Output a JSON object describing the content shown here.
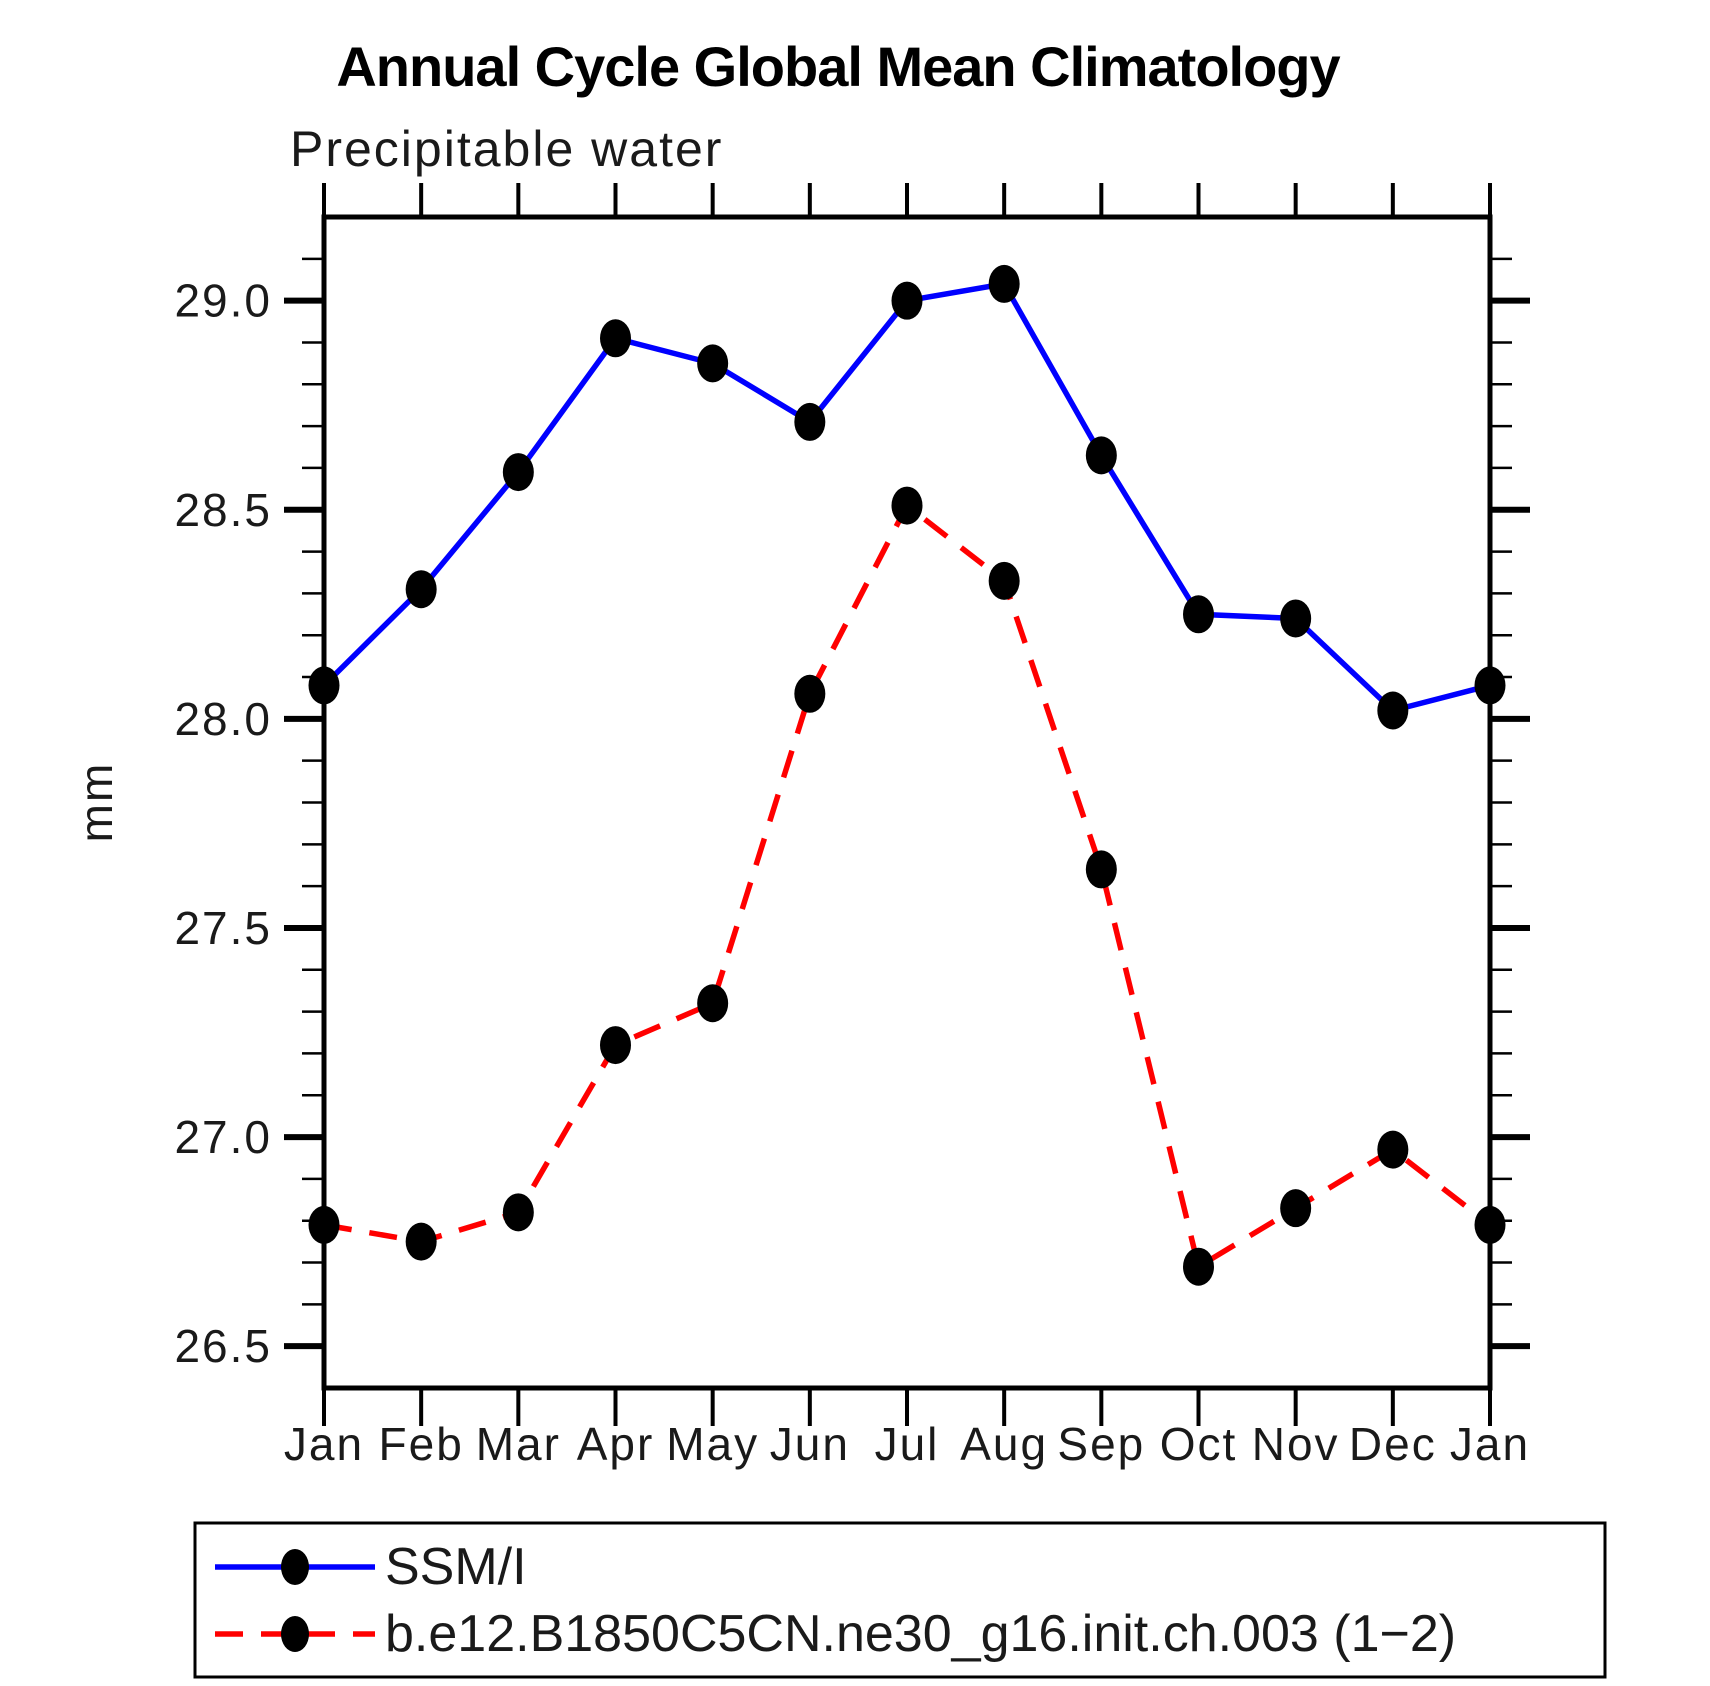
{
  "header": {
    "title": "Annual Cycle Global Mean Climatology",
    "subtitle": "Precipitable water"
  },
  "chart_data": {
    "type": "line",
    "title": "Annual Cycle Global Mean Climatology",
    "subtitle": "Precipitable water",
    "ylabel": "mm",
    "xlabel": "",
    "categories": [
      "Jan",
      "Feb",
      "Mar",
      "Apr",
      "May",
      "Jun",
      "Jul",
      "Aug",
      "Sep",
      "Oct",
      "Nov",
      "Dec",
      "Jan"
    ],
    "series": [
      {
        "name": "SSM/I",
        "color": "#0000ff",
        "line_style": "solid",
        "marker": "filled-circle",
        "marker_color": "#000000",
        "values": [
          28.08,
          28.31,
          28.59,
          28.91,
          28.85,
          28.71,
          29.0,
          29.04,
          28.63,
          28.25,
          28.24,
          28.02,
          28.08
        ]
      },
      {
        "name": "b.e12.B1850C5CN.ne30_g16.init.ch.003 (1−2)",
        "color": "#ff0000",
        "line_style": "dashed",
        "marker": "filled-circle",
        "marker_color": "#000000",
        "values": [
          26.79,
          26.75,
          26.82,
          27.22,
          27.32,
          28.06,
          28.51,
          28.33,
          27.64,
          26.69,
          26.83,
          26.97,
          26.79
        ]
      }
    ],
    "ylim": [
      26.4,
      29.2
    ],
    "yticks_major": [
      26.5,
      27.0,
      27.5,
      28.0,
      28.5,
      29.0
    ],
    "ytick_minor_step": 0.1,
    "ytick_label_format": "one-decimal",
    "grid": false,
    "legend_position": "bottom"
  },
  "colors": {
    "axis": "#000000",
    "series_blue": "#0000ff",
    "series_red": "#ff0000",
    "marker": "#000000",
    "background": "#ffffff"
  }
}
